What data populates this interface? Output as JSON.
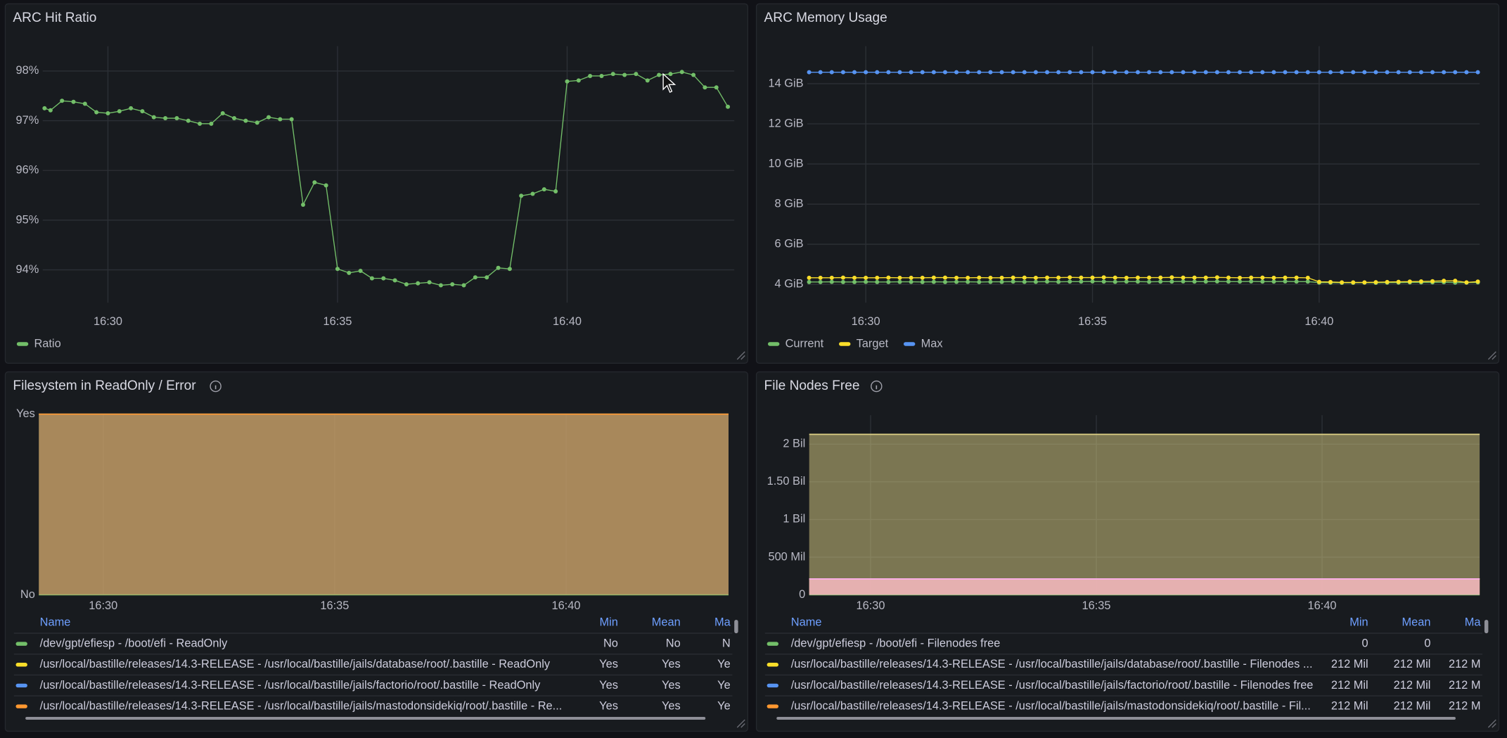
{
  "chart_data": [
    {
      "type": "line",
      "title": "ARC Hit Ratio",
      "grid": true,
      "legend": "bottom-left",
      "x": [
        28.62,
        28.75,
        29,
        29.25,
        29.5,
        29.75,
        30,
        30.25,
        30.5,
        30.75,
        31,
        31.25,
        31.5,
        31.75,
        32,
        32.25,
        32.5,
        32.75,
        33,
        33.25,
        33.5,
        33.75,
        34,
        34.25,
        34.5,
        34.75,
        35,
        35.25,
        35.5,
        35.75,
        36,
        36.25,
        36.5,
        36.75,
        37,
        37.25,
        37.5,
        37.75,
        38,
        38.25,
        38.5,
        38.75,
        39,
        39.25,
        39.5,
        39.75,
        40,
        40.25,
        40.5,
        40.75,
        41,
        41.25,
        41.5,
        41.75,
        42,
        42.25,
        42.5,
        42.75,
        43,
        43.25,
        43.5
      ],
      "xlim": [
        28.58,
        43.64
      ],
      "xticks": [
        {
          "value": 30,
          "label": "16:30"
        },
        {
          "value": 35,
          "label": "16:35"
        },
        {
          "value": 40,
          "label": "16:40"
        }
      ],
      "ylim": [
        93.34,
        98.5
      ],
      "yticks": [
        {
          "value": 94,
          "label": "94%"
        },
        {
          "value": 95,
          "label": "95%"
        },
        {
          "value": 96,
          "label": "96%"
        },
        {
          "value": 97,
          "label": "97%"
        },
        {
          "value": 98,
          "label": "98%"
        }
      ],
      "series": [
        {
          "name": "Ratio",
          "color": "#73bf69",
          "values": [
            97.25,
            97.21,
            97.4,
            97.38,
            97.34,
            97.17,
            97.15,
            97.19,
            97.25,
            97.19,
            97.07,
            97.05,
            97.05,
            97.0,
            96.94,
            96.94,
            97.15,
            97.05,
            97.0,
            96.96,
            97.07,
            97.03,
            97.03,
            95.31,
            95.76,
            95.7,
            94.02,
            93.94,
            93.98,
            93.83,
            93.83,
            93.79,
            93.71,
            93.73,
            93.75,
            93.69,
            93.71,
            93.69,
            93.85,
            93.85,
            94.04,
            94.02,
            95.49,
            95.53,
            95.62,
            95.58,
            97.79,
            97.81,
            97.9,
            97.9,
            97.94,
            97.92,
            97.94,
            97.81,
            97.92,
            97.94,
            97.98,
            97.92,
            97.67,
            97.67,
            97.28
          ]
        }
      ]
    },
    {
      "type": "line",
      "title": "ARC Memory Usage",
      "grid": true,
      "legend": "bottom-left",
      "x": [
        28.75,
        29,
        29.25,
        29.5,
        29.75,
        30,
        30.25,
        30.5,
        30.75,
        31,
        31.25,
        31.5,
        31.75,
        32,
        32.25,
        32.5,
        32.75,
        33,
        33.25,
        33.5,
        33.75,
        34,
        34.25,
        34.5,
        34.75,
        35,
        35.25,
        35.5,
        35.75,
        36,
        36.25,
        36.5,
        36.75,
        37,
        37.25,
        37.5,
        37.75,
        38,
        38.25,
        38.5,
        38.75,
        39,
        39.25,
        39.5,
        39.75,
        40,
        40.25,
        40.5,
        40.75,
        41,
        41.25,
        41.5,
        41.75,
        42,
        42.25,
        42.5,
        42.75,
        43,
        43.25,
        43.5
      ],
      "xlim": [
        28.71,
        43.54
      ],
      "xticks": [
        {
          "value": 30,
          "label": "16:30"
        },
        {
          "value": 35,
          "label": "16:35"
        },
        {
          "value": 40,
          "label": "16:40"
        }
      ],
      "ylim": [
        3.09,
        15.87
      ],
      "yticks": [
        {
          "value": 4,
          "label": "4 GiB"
        },
        {
          "value": 6,
          "label": "6 GiB"
        },
        {
          "value": 8,
          "label": "8 GiB"
        },
        {
          "value": 10,
          "label": "10 GiB"
        },
        {
          "value": 12,
          "label": "12 GiB"
        },
        {
          "value": 14,
          "label": "14 GiB"
        }
      ],
      "series": [
        {
          "name": "Current",
          "color": "#73bf69",
          "values": [
            4.12,
            4.12,
            4.13,
            4.12,
            4.12,
            4.13,
            4.12,
            4.12,
            4.13,
            4.13,
            4.12,
            4.13,
            4.12,
            4.13,
            4.13,
            4.12,
            4.13,
            4.13,
            4.14,
            4.13,
            4.13,
            4.14,
            4.13,
            4.14,
            4.14,
            4.15,
            4.14,
            4.13,
            4.14,
            4.14,
            4.13,
            4.14,
            4.14,
            4.15,
            4.14,
            4.14,
            4.15,
            4.14,
            4.14,
            4.15,
            4.14,
            4.14,
            4.15,
            4.14,
            4.14,
            4.09,
            4.09,
            4.08,
            4.08,
            4.09,
            4.08,
            4.09,
            4.09,
            4.1,
            4.1,
            4.1,
            4.11,
            4.09,
            4.09,
            4.1
          ]
        },
        {
          "name": "Target",
          "color": "#fade2a",
          "values": [
            4.33,
            4.33,
            4.33,
            4.34,
            4.33,
            4.33,
            4.33,
            4.34,
            4.33,
            4.33,
            4.33,
            4.34,
            4.34,
            4.33,
            4.33,
            4.34,
            4.33,
            4.33,
            4.34,
            4.34,
            4.33,
            4.34,
            4.34,
            4.35,
            4.34,
            4.34,
            4.35,
            4.34,
            4.33,
            4.34,
            4.34,
            4.34,
            4.35,
            4.34,
            4.34,
            4.34,
            4.35,
            4.34,
            4.33,
            4.34,
            4.34,
            4.33,
            4.34,
            4.34,
            4.33,
            4.13,
            4.12,
            4.1,
            4.1,
            4.1,
            4.11,
            4.12,
            4.13,
            4.14,
            4.15,
            4.16,
            4.18,
            4.18,
            4.1,
            4.14
          ]
        },
        {
          "name": "Max",
          "color": "#5794f2",
          "values": [
            14.57,
            14.57,
            14.57,
            14.57,
            14.57,
            14.57,
            14.57,
            14.57,
            14.57,
            14.57,
            14.57,
            14.57,
            14.57,
            14.57,
            14.57,
            14.57,
            14.57,
            14.57,
            14.57,
            14.57,
            14.57,
            14.57,
            14.57,
            14.57,
            14.57,
            14.57,
            14.57,
            14.57,
            14.57,
            14.57,
            14.57,
            14.57,
            14.57,
            14.57,
            14.57,
            14.57,
            14.57,
            14.57,
            14.57,
            14.57,
            14.57,
            14.57,
            14.57,
            14.57,
            14.57,
            14.57,
            14.57,
            14.57,
            14.57,
            14.57,
            14.57,
            14.57,
            14.57,
            14.57,
            14.57,
            14.57,
            14.57,
            14.57,
            14.57,
            14.57
          ]
        }
      ]
    },
    {
      "type": "area",
      "title": "Filesystem in ReadOnly / Error",
      "grid": true,
      "legend": "table-bottom",
      "x": [
        28.61,
        43.51
      ],
      "xlim": [
        28.61,
        43.51
      ],
      "xticks": [
        {
          "value": 30,
          "label": "16:30"
        },
        {
          "value": 35,
          "label": "16:35"
        },
        {
          "value": 40,
          "label": "16:40"
        }
      ],
      "ylim": [
        0,
        1
      ],
      "yticks": [
        {
          "value": 0,
          "label": "No"
        },
        {
          "value": 1,
          "label": "Yes"
        }
      ],
      "legend_columns": [
        "Name",
        "Min",
        "Mean",
        "Ma"
      ],
      "series": [
        {
          "name": "/dev/gpt/efiesp - /boot/efi - ReadOnly",
          "color": "#73bf69",
          "values": [
            0,
            0
          ],
          "legend_values": [
            "No",
            "No",
            "N"
          ]
        },
        {
          "name": "/usr/local/bastille/releases/14.3-RELEASE - /usr/local/bastille/jails/database/root/.bastille - ReadOnly",
          "color": "#fade2a",
          "values": [
            1,
            1
          ],
          "legend_values": [
            "Yes",
            "Yes",
            "Ye"
          ]
        },
        {
          "name": "/usr/local/bastille/releases/14.3-RELEASE - /usr/local/bastille/jails/factorio/root/.bastille - ReadOnly",
          "color": "#5794f2",
          "values": [
            1,
            1
          ],
          "legend_values": [
            "Yes",
            "Yes",
            "Ye"
          ]
        },
        {
          "name": "/usr/local/bastille/releases/14.3-RELEASE - /usr/local/bastille/jails/mastodonsidekiq/root/.bastille - Re...",
          "color": "#ff9830",
          "values": [
            1,
            1
          ],
          "legend_values": [
            "Yes",
            "Yes",
            "Ye"
          ]
        }
      ]
    },
    {
      "type": "area",
      "title": "File Nodes Free",
      "grid": true,
      "legend": "table-bottom",
      "x": [
        28.64,
        43.49
      ],
      "xlim": [
        28.64,
        43.49
      ],
      "xticks": [
        {
          "value": 30,
          "label": "16:30"
        },
        {
          "value": 35,
          "label": "16:35"
        },
        {
          "value": 40,
          "label": "16:40"
        }
      ],
      "ylim": [
        0,
        2385000000
      ],
      "yticks": [
        0,
        {
          "value": 500000000,
          "label": "500 Mil"
        },
        {
          "value": 1000000000,
          "label": "1 Bil"
        },
        {
          "value": 1500000000,
          "label": "1.50 Bil"
        },
        {
          "value": 2000000000,
          "label": "2 Bil"
        }
      ],
      "legend_columns": [
        "Name",
        "Min",
        "Mean",
        "Ma"
      ],
      "series": [
        {
          "name": "/dev/gpt/efiesp - /boot/efi - Filenodes free",
          "color": "#73bf69",
          "values": [
            0,
            0
          ],
          "legend_values": [
            "0",
            "0"
          ]
        },
        {
          "name": "/usr/local/bastille/releases/14.3-RELEASE - /usr/local/bastille/jails/database/root/.bastille - Filenodes ...",
          "color": "#fade2a",
          "values": [
            212000000,
            212000000
          ],
          "legend_values": [
            "212 Mil",
            "212 Mil",
            "212 M"
          ]
        },
        {
          "name": "/usr/local/bastille/releases/14.3-RELEASE - /usr/local/bastille/jails/factorio/root/.bastille - Filenodes free",
          "color": "#5794f2",
          "values": [
            212000000,
            212000000
          ],
          "legend_values": [
            "212 Mil",
            "212 Mil",
            "212 M"
          ]
        },
        {
          "name": "/usr/local/bastille/releases/14.3-RELEASE - /usr/local/bastille/jails/mastodonsidekiq/root/.bastille - Fil...",
          "color": "#ff9830",
          "values": [
            212000000,
            212000000
          ],
          "legend_values": [
            "212 Mil",
            "212 Mil",
            "212 M"
          ]
        },
        {
          "color": "#ded185",
          "values": [
            2130000000,
            2130000000
          ]
        },
        {
          "color": "#ffb0f0",
          "values": [
            212000000,
            212000000
          ]
        }
      ]
    }
  ]
}
